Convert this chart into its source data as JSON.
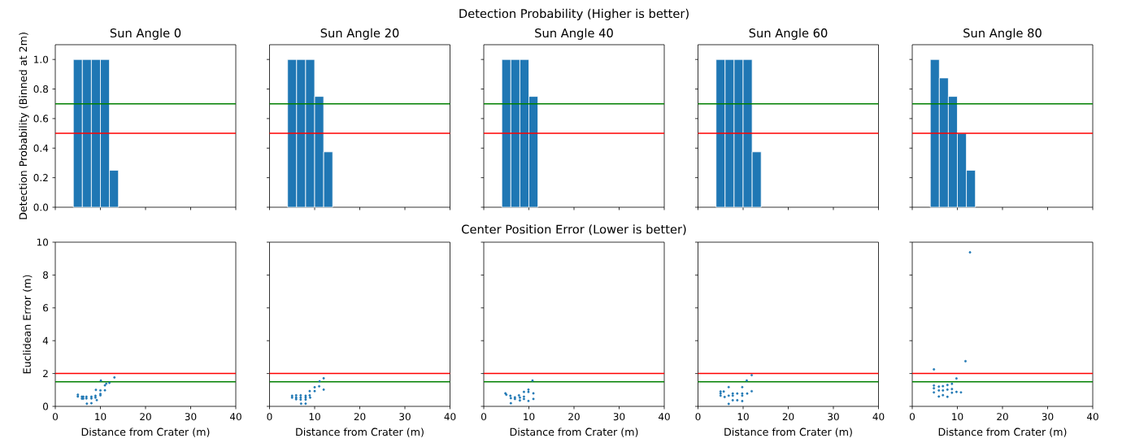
{
  "chart_data": [
    {
      "type": "histogram",
      "title": "Sun Angle 0",
      "ylabel": "Detection Probability (Binned at 2m)",
      "bins": [
        4,
        6,
        8,
        10,
        12,
        14
      ],
      "values": [
        1,
        1,
        1,
        1,
        0.25
      ],
      "color": "#1f77b4",
      "xlim": [
        0,
        40
      ],
      "xticks": [
        0,
        10,
        20,
        30,
        40
      ],
      "ylim": [
        0,
        1.1
      ],
      "yticks": [
        {
          "value": 0,
          "label": "0.0"
        },
        {
          "value": 0.2,
          "label": "0.2"
        },
        {
          "value": 0.4,
          "label": "0.4"
        },
        {
          "value": 0.6,
          "label": "0.6"
        },
        {
          "value": 0.8,
          "label": "0.8"
        },
        {
          "value": 1,
          "label": "1.0"
        }
      ],
      "tick_labels": "y",
      "ref_lines": [
        {
          "axis": "y",
          "value": 0.7,
          "color": "#008000"
        },
        {
          "axis": "y",
          "value": 0.5,
          "color": "#ff0000"
        }
      ]
    },
    {
      "type": "histogram",
      "title": "Sun Angle 20",
      "bins": [
        4,
        6,
        8,
        10,
        12,
        14
      ],
      "values": [
        1,
        1,
        1,
        0.75,
        0.375
      ],
      "color": "#1f77b4",
      "xlim": [
        0,
        40
      ],
      "xticks": [
        0,
        10,
        20,
        30,
        40
      ],
      "ylim": [
        0,
        1.1
      ],
      "yticks": [
        0,
        0.2,
        0.4,
        0.6,
        0.8,
        1
      ],
      "tick_labels": false,
      "ref_lines": [
        {
          "axis": "y",
          "value": 0.7,
          "color": "#008000"
        },
        {
          "axis": "y",
          "value": 0.5,
          "color": "#ff0000"
        }
      ]
    },
    {
      "type": "histogram",
      "title": "Sun Angle 40",
      "annotations": [
        "Detection Probability (Higher is better)"
      ],
      "bins": [
        4,
        6,
        8,
        10,
        12
      ],
      "values": [
        1,
        1,
        1,
        0.75
      ],
      "color": "#1f77b4",
      "xlim": [
        0,
        40
      ],
      "xticks": [
        0,
        10,
        20,
        30,
        40
      ],
      "ylim": [
        0,
        1.1
      ],
      "yticks": [
        0,
        0.2,
        0.4,
        0.6,
        0.8,
        1
      ],
      "tick_labels": false,
      "ref_lines": [
        {
          "axis": "y",
          "value": 0.7,
          "color": "#008000"
        },
        {
          "axis": "y",
          "value": 0.5,
          "color": "#ff0000"
        }
      ]
    },
    {
      "type": "histogram",
      "title": "Sun Angle 60",
      "bins": [
        4,
        6,
        8,
        10,
        12,
        14
      ],
      "values": [
        1,
        1,
        1,
        1,
        0.375
      ],
      "color": "#1f77b4",
      "xlim": [
        0,
        40
      ],
      "xticks": [
        0,
        10,
        20,
        30,
        40
      ],
      "ylim": [
        0,
        1.1
      ],
      "yticks": [
        0,
        0.2,
        0.4,
        0.6,
        0.8,
        1
      ],
      "tick_labels": false,
      "ref_lines": [
        {
          "axis": "y",
          "value": 0.7,
          "color": "#008000"
        },
        {
          "axis": "y",
          "value": 0.5,
          "color": "#ff0000"
        }
      ]
    },
    {
      "type": "histogram",
      "title": "Sun Angle 80",
      "bins": [
        4,
        6,
        8,
        10,
        12,
        14
      ],
      "values": [
        1,
        0.875,
        0.75,
        0.5,
        0.25
      ],
      "color": "#1f77b4",
      "xlim": [
        0,
        40
      ],
      "xticks": [
        0,
        10,
        20,
        30,
        40
      ],
      "ylim": [
        0,
        1.1
      ],
      "yticks": [
        0,
        0.2,
        0.4,
        0.6,
        0.8,
        1
      ],
      "tick_labels": false,
      "ref_lines": [
        {
          "axis": "y",
          "value": 0.7,
          "color": "#008000"
        },
        {
          "axis": "y",
          "value": 0.5,
          "color": "#ff0000"
        }
      ]
    },
    {
      "type": "scatter",
      "xlabel": "Distance from Crater (m)",
      "ylabel": "Euclidean Error (m)",
      "x": [
        5.0,
        5.0,
        5.9,
        5.9,
        6.2,
        6.2,
        6.9,
        6.9,
        7.0,
        8.0,
        8.0,
        8.0,
        8.9,
        8.9,
        9.0,
        9.2,
        10.0,
        10.0,
        10.0,
        10.1,
        11.0,
        11.0,
        11.3,
        12.0,
        13.1
      ],
      "values": [
        0.71,
        0.6,
        0.59,
        0.47,
        0.59,
        0.47,
        0.59,
        0.48,
        0.16,
        0.59,
        0.48,
        0.19,
        0.64,
        0.53,
        1.0,
        0.38,
        0.97,
        0.76,
        0.67,
        1.57,
        1.28,
        0.98,
        1.38,
        1.43,
        1.76
      ],
      "color": "#1f77b4",
      "marker": "circle",
      "xlim": [
        0,
        40
      ],
      "xticks": [
        0,
        10,
        20,
        30,
        40
      ],
      "ylim": [
        0,
        10
      ],
      "yticks": [
        0,
        2,
        4,
        6,
        8,
        10
      ],
      "ref_lines": [
        {
          "axis": "y",
          "value": 2,
          "color": "#ff0000"
        },
        {
          "axis": "y",
          "value": 1.5,
          "color": "#008000"
        }
      ]
    },
    {
      "type": "scatter",
      "xlabel": "Distance from Crater (m)",
      "x": [
        5.0,
        5.0,
        5.9,
        5.9,
        5.9,
        6.9,
        6.9,
        6.9,
        7.0,
        8.0,
        8.0,
        8.0,
        8.0,
        8.9,
        8.9,
        9.0,
        10.0,
        10.0,
        11.0,
        11.1,
        12.0,
        12.0
      ],
      "values": [
        0.64,
        0.53,
        0.67,
        0.53,
        0.43,
        0.67,
        0.53,
        0.41,
        0.16,
        0.64,
        0.53,
        0.41,
        0.16,
        0.93,
        0.67,
        0.53,
        1.16,
        0.93,
        1.22,
        1.53,
        1.02,
        1.71
      ],
      "color": "#1f77b4",
      "marker": "circle",
      "xlim": [
        0,
        40
      ],
      "xticks": [
        0,
        10,
        20,
        30,
        40
      ],
      "ylim": [
        0,
        10
      ],
      "yticks": [
        0,
        2,
        4,
        6,
        8,
        10
      ],
      "tick_labels": "x",
      "ref_lines": [
        {
          "axis": "y",
          "value": 2,
          "color": "#ff0000"
        },
        {
          "axis": "y",
          "value": 1.5,
          "color": "#008000"
        }
      ]
    },
    {
      "type": "scatter",
      "xlabel": "Distance from Crater (m)",
      "annotations": [
        "Center Position Error (Lower is better)"
      ],
      "x": [
        4.8,
        5.0,
        5.9,
        6.0,
        6.0,
        6.9,
        6.9,
        7.8,
        8.0,
        8.0,
        8.9,
        8.9,
        8.9,
        9.9,
        9.9,
        9.9,
        10.8,
        11.0,
        11.0
      ],
      "values": [
        0.79,
        0.71,
        0.64,
        0.5,
        0.19,
        0.55,
        0.45,
        0.67,
        0.53,
        0.36,
        0.88,
        0.59,
        0.45,
        1.02,
        0.88,
        0.33,
        1.57,
        0.79,
        0.45
      ],
      "color": "#1f77b4",
      "marker": "circle",
      "xlim": [
        0,
        40
      ],
      "xticks": [
        0,
        10,
        20,
        30,
        40
      ],
      "ylim": [
        0,
        10
      ],
      "yticks": [
        0,
        2,
        4,
        6,
        8,
        10
      ],
      "tick_labels": "x",
      "ref_lines": [
        {
          "axis": "y",
          "value": 2,
          "color": "#ff0000"
        },
        {
          "axis": "y",
          "value": 1.5,
          "color": "#008000"
        }
      ]
    },
    {
      "type": "scatter",
      "xlabel": "Distance from Crater (m)",
      "x": [
        5.0,
        5.0,
        5.0,
        5.7,
        5.9,
        6.8,
        6.8,
        6.8,
        7.7,
        7.7,
        7.7,
        8.7,
        8.7,
        9.8,
        9.8,
        9.8,
        9.8,
        10.8,
        10.9,
        11.9,
        11.9
      ],
      "values": [
        0.9,
        0.78,
        0.65,
        0.9,
        0.57,
        1.17,
        0.65,
        0.15,
        0.78,
        0.65,
        0.37,
        0.78,
        0.37,
        1.17,
        0.78,
        0.65,
        0.32,
        1.57,
        0.78,
        1.9,
        0.92
      ],
      "color": "#1f77b4",
      "marker": "circle",
      "xlim": [
        0,
        40
      ],
      "xticks": [
        0,
        10,
        20,
        30,
        40
      ],
      "ylim": [
        0,
        10
      ],
      "yticks": [
        0,
        2,
        4,
        6,
        8,
        10
      ],
      "tick_labels": "x",
      "ref_lines": [
        {
          "axis": "y",
          "value": 2,
          "color": "#ff0000"
        },
        {
          "axis": "y",
          "value": 1.5,
          "color": "#008000"
        }
      ]
    },
    {
      "type": "scatter",
      "xlabel": "Distance from Crater (m)",
      "x": [
        12.8,
        11.8,
        4.8,
        9.8,
        8.8,
        8.8,
        7.8,
        7.8,
        7.8,
        6.8,
        6.8,
        6.8,
        5.9,
        5.9,
        5.9,
        4.8,
        4.8,
        4.8,
        9.8,
        10.8,
        8.8
      ],
      "values": [
        9.38,
        2.75,
        2.25,
        1.7,
        1.37,
        1.05,
        1.3,
        1.02,
        0.58,
        1.23,
        0.97,
        0.68,
        1.2,
        0.97,
        0.6,
        1.27,
        1.1,
        0.85,
        0.88,
        0.85,
        0.83
      ],
      "color": "#1f77b4",
      "marker": "circle",
      "xlim": [
        0,
        40
      ],
      "xticks": [
        0,
        10,
        20,
        30,
        40
      ],
      "ylim": [
        0,
        10
      ],
      "yticks": [
        0,
        2,
        4,
        6,
        8,
        10
      ],
      "tick_labels": "x",
      "ref_lines": [
        {
          "axis": "y",
          "value": 2,
          "color": "#ff0000"
        },
        {
          "axis": "y",
          "value": 1.5,
          "color": "#008000"
        }
      ]
    }
  ]
}
